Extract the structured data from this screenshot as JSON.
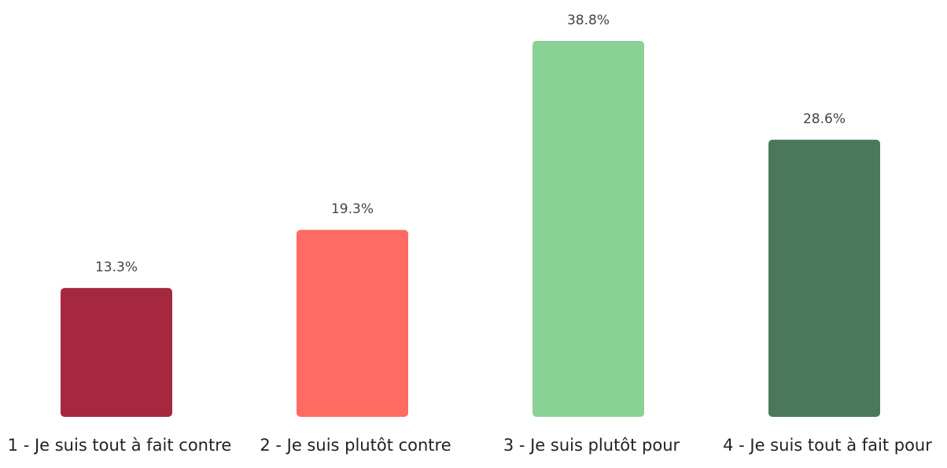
{
  "chart_data": {
    "type": "bar",
    "categories": [
      "1 - Je suis tout à fait contre",
      "2 - Je suis plutôt contre",
      "3 - Je suis plutôt pour",
      "4 - Je suis tout à fait pour"
    ],
    "values": [
      13.3,
      19.3,
      38.8,
      28.6
    ],
    "value_labels": [
      "13.3%",
      "19.3%",
      "38.8%",
      "28.6%"
    ],
    "colors": [
      "#a6283e",
      "#ff6b63",
      "#8ad196",
      "#4b785b"
    ]
  }
}
